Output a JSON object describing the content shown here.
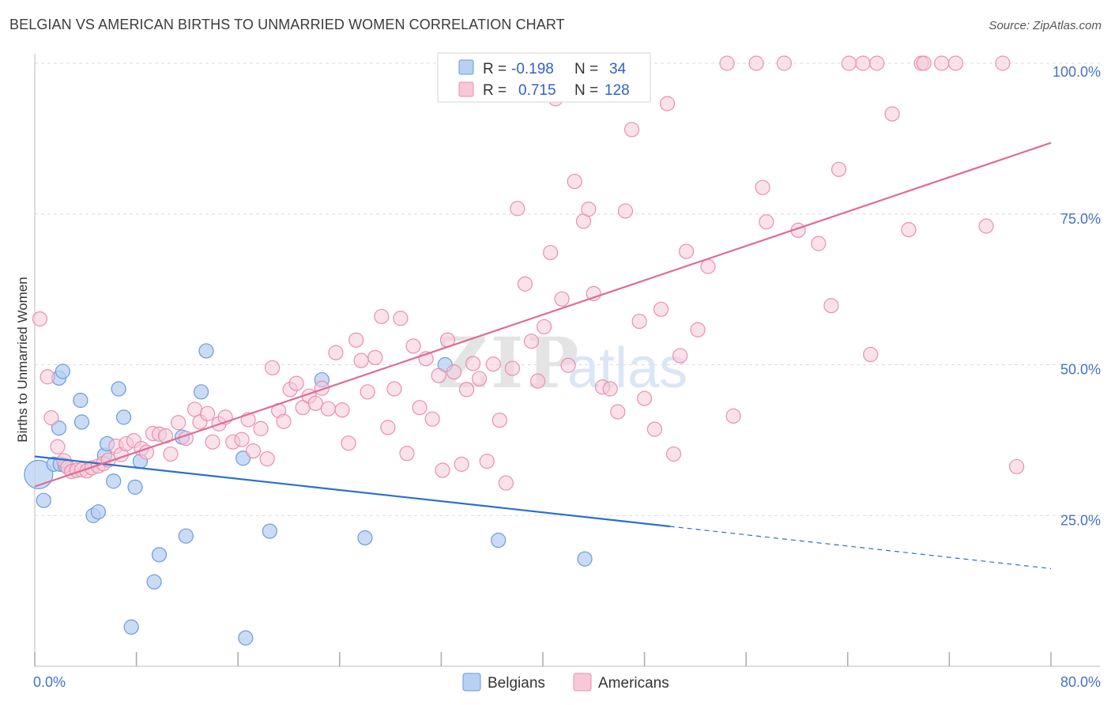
{
  "title": "BELGIAN VS AMERICAN BIRTHS TO UNMARRIED WOMEN CORRELATION CHART",
  "source": "Source: ZipAtlas.com",
  "watermark": {
    "zip": "ZIP",
    "atlas": "atlas"
  },
  "colors": {
    "belgians_fill": "#b8d0f2",
    "belgians_stroke": "#6a9be0",
    "belgians_line": "#2a6fce",
    "americans_fill": "#f8c8d8",
    "americans_stroke": "#e890ae",
    "americans_line": "#e06b95",
    "tick_text": "#4472c4",
    "grid": "#dcdcdc"
  },
  "legend": {
    "row1": {
      "r_label": "R =",
      "r_value": "-0.198",
      "n_label": "N =",
      "n_value": "34"
    },
    "row2": {
      "r_label": "R =",
      "r_value": "0.715",
      "n_label": "N =",
      "n_value": "128"
    }
  },
  "bottom_legend": {
    "belgians": "Belgians",
    "americans": "Americans"
  },
  "chart_data": {
    "type": "scatter",
    "title": "BELGIAN VS AMERICAN BIRTHS TO UNMARRIED WOMEN CORRELATION CHART",
    "xlabel": "",
    "ylabel": "Births to Unmarried Women",
    "xlim": [
      0,
      80
    ],
    "ylim": [
      0,
      102
    ],
    "x_tick_labels": [
      "0.0%",
      "80.0%"
    ],
    "y_ticks": [
      25,
      50,
      75,
      100
    ],
    "y_tick_labels": [
      "25.0%",
      "50.0%",
      "75.0%",
      "100.0%"
    ],
    "grid": true,
    "series": [
      {
        "name": "Belgians",
        "r": -0.198,
        "n": 34,
        "trend": {
          "x0": 0,
          "y0": 34.8,
          "x1": 50,
          "y1": 23.2,
          "dash_to_x": 80,
          "dash_to_y": 16.2
        },
        "points": [
          [
            0.3,
            31.8,
            18
          ],
          [
            0.7,
            27.5,
            9
          ],
          [
            1.5,
            33.5,
            9
          ],
          [
            1.9,
            47.8,
            9
          ],
          [
            2.2,
            48.9,
            9
          ],
          [
            2.0,
            33.5,
            9
          ],
          [
            1.9,
            39.5,
            9
          ],
          [
            3.7,
            40.5,
            9
          ],
          [
            3.6,
            44.1,
            9
          ],
          [
            4.6,
            25.0,
            9
          ],
          [
            5.0,
            25.6,
            9
          ],
          [
            5.5,
            35.0,
            9
          ],
          [
            5.7,
            36.9,
            9
          ],
          [
            6.2,
            30.7,
            9
          ],
          [
            6.6,
            46.0,
            9
          ],
          [
            7.0,
            41.3,
            9
          ],
          [
            7.6,
            6.5,
            9
          ],
          [
            7.9,
            29.7,
            9
          ],
          [
            8.3,
            34.0,
            9
          ],
          [
            9.4,
            14.0,
            9
          ],
          [
            9.8,
            18.5,
            9
          ],
          [
            11.6,
            38.0,
            9
          ],
          [
            11.9,
            21.6,
            9
          ],
          [
            13.1,
            45.5,
            9
          ],
          [
            13.5,
            52.3,
            9
          ],
          [
            16.4,
            34.5,
            9
          ],
          [
            16.6,
            4.7,
            9
          ],
          [
            18.5,
            22.4,
            9
          ],
          [
            22.6,
            47.5,
            9
          ],
          [
            26.0,
            21.3,
            9
          ],
          [
            32.3,
            50.0,
            9
          ],
          [
            36.5,
            20.9,
            9
          ],
          [
            43.3,
            17.8,
            9
          ],
          [
            2.4,
            33.3,
            9
          ]
        ]
      },
      {
        "name": "Americans",
        "r": 0.715,
        "n": 128,
        "trend": {
          "x0": 0,
          "y0": 29.8,
          "x1": 80,
          "y1": 86.8
        },
        "points": [
          [
            0.4,
            57.6
          ],
          [
            1.0,
            48.0
          ],
          [
            1.3,
            41.2
          ],
          [
            1.8,
            36.4
          ],
          [
            2.3,
            34.1
          ],
          [
            2.6,
            33.0
          ],
          [
            2.9,
            32.3
          ],
          [
            3.3,
            32.5
          ],
          [
            3.7,
            32.6
          ],
          [
            4.1,
            32.4
          ],
          [
            4.5,
            32.9
          ],
          [
            5.0,
            33.2
          ],
          [
            5.4,
            33.6
          ],
          [
            5.8,
            34.2
          ],
          [
            6.4,
            36.5
          ],
          [
            6.8,
            35.1
          ],
          [
            7.2,
            36.9
          ],
          [
            7.8,
            37.4
          ],
          [
            8.4,
            36.1
          ],
          [
            8.8,
            35.5
          ],
          [
            9.3,
            38.6
          ],
          [
            9.8,
            38.5
          ],
          [
            10.3,
            38.2
          ],
          [
            10.7,
            35.2
          ],
          [
            11.3,
            40.4
          ],
          [
            11.9,
            37.8
          ],
          [
            12.6,
            42.6
          ],
          [
            13.0,
            40.5
          ],
          [
            13.6,
            41.9
          ],
          [
            14.0,
            37.2
          ],
          [
            14.5,
            40.2
          ],
          [
            15.0,
            41.3
          ],
          [
            15.6,
            37.2
          ],
          [
            16.3,
            37.6
          ],
          [
            16.8,
            40.9
          ],
          [
            17.2,
            35.7
          ],
          [
            17.8,
            39.4
          ],
          [
            18.3,
            34.4
          ],
          [
            18.7,
            49.5
          ],
          [
            19.2,
            42.4
          ],
          [
            19.6,
            40.6
          ],
          [
            20.1,
            45.9
          ],
          [
            20.6,
            46.9
          ],
          [
            21.1,
            42.9
          ],
          [
            21.6,
            44.8
          ],
          [
            22.1,
            43.6
          ],
          [
            22.6,
            46.1
          ],
          [
            23.1,
            42.7
          ],
          [
            23.7,
            52.0
          ],
          [
            24.2,
            42.5
          ],
          [
            24.7,
            37.0
          ],
          [
            25.3,
            54.1
          ],
          [
            25.7,
            50.7
          ],
          [
            26.2,
            45.5
          ],
          [
            26.8,
            51.2
          ],
          [
            27.3,
            58.0
          ],
          [
            27.8,
            39.6
          ],
          [
            28.3,
            46.0
          ],
          [
            28.8,
            57.7
          ],
          [
            29.3,
            35.3
          ],
          [
            29.8,
            53.1
          ],
          [
            30.3,
            42.9
          ],
          [
            30.8,
            51.0
          ],
          [
            31.3,
            41.0
          ],
          [
            31.8,
            48.2
          ],
          [
            32.1,
            32.5
          ],
          [
            32.5,
            54.1
          ],
          [
            33.0,
            48.8
          ],
          [
            33.6,
            33.5
          ],
          [
            34.0,
            45.9
          ],
          [
            34.5,
            50.2
          ],
          [
            35.0,
            47.7
          ],
          [
            35.6,
            34.0
          ],
          [
            36.1,
            50.1
          ],
          [
            36.6,
            40.8
          ],
          [
            37.1,
            30.4
          ],
          [
            37.6,
            49.4
          ],
          [
            38.0,
            75.9
          ],
          [
            38.6,
            63.4
          ],
          [
            39.1,
            53.9
          ],
          [
            39.6,
            47.3
          ],
          [
            40.1,
            56.3
          ],
          [
            40.6,
            68.6
          ],
          [
            41.0,
            94.1
          ],
          [
            41.5,
            60.9
          ],
          [
            42.0,
            49.9
          ],
          [
            42.5,
            80.4
          ],
          [
            43.2,
            73.8
          ],
          [
            43.6,
            75.8
          ],
          [
            44.0,
            61.8
          ],
          [
            44.7,
            46.3
          ],
          [
            45.3,
            46.0
          ],
          [
            45.9,
            42.2
          ],
          [
            46.5,
            75.5
          ],
          [
            47.0,
            89.0
          ],
          [
            47.6,
            57.2
          ],
          [
            48.0,
            44.4
          ],
          [
            48.8,
            39.3
          ],
          [
            49.3,
            59.2
          ],
          [
            49.8,
            93.3
          ],
          [
            50.3,
            35.2
          ],
          [
            50.8,
            51.5
          ],
          [
            51.3,
            68.8
          ],
          [
            52.2,
            55.8
          ],
          [
            53.0,
            66.3
          ],
          [
            54.5,
            100.0
          ],
          [
            55.0,
            41.5
          ],
          [
            56.8,
            100.0
          ],
          [
            57.3,
            79.4
          ],
          [
            57.6,
            73.7
          ],
          [
            59.0,
            100.0
          ],
          [
            60.1,
            72.3
          ],
          [
            61.7,
            70.1
          ],
          [
            62.7,
            59.8
          ],
          [
            63.3,
            82.4
          ],
          [
            64.1,
            100.0
          ],
          [
            65.2,
            100.0
          ],
          [
            65.8,
            51.7
          ],
          [
            66.3,
            100.0
          ],
          [
            67.5,
            91.6
          ],
          [
            68.8,
            72.4
          ],
          [
            69.8,
            100.0
          ],
          [
            70.0,
            100.0
          ],
          [
            71.4,
            100.0
          ],
          [
            72.5,
            100.0
          ],
          [
            74.9,
            73.0
          ],
          [
            76.2,
            100.0
          ],
          [
            77.3,
            33.1
          ]
        ]
      }
    ]
  }
}
